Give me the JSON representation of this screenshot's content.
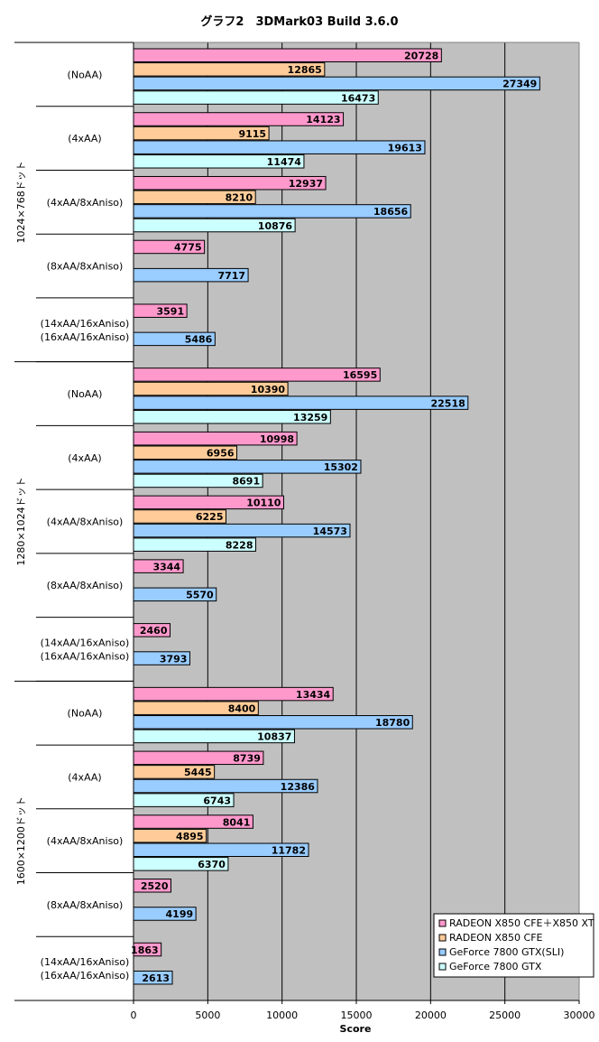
{
  "chart_data": {
    "type": "bar",
    "orientation": "horizontal",
    "title": "グラフ2　3DMark03 Build 3.6.0",
    "xlabel": "Score",
    "xlim": [
      0,
      30000
    ],
    "xticks": [
      0,
      5000,
      10000,
      15000,
      20000,
      25000,
      30000
    ],
    "grid": true,
    "legend_position": "bottom-right",
    "series": [
      {
        "name": "RADEON X850 CFE＋X850 XT",
        "color": "#ff99cc"
      },
      {
        "name": "RADEON X850 CFE",
        "color": "#ffcc99"
      },
      {
        "name": "GeForce 7800 GTX(SLI)",
        "color": "#99ccff"
      },
      {
        "name": "GeForce 7800 GTX",
        "color": "#ccffff"
      }
    ],
    "groups": [
      {
        "label": "1024×768ドット",
        "categories": [
          {
            "label": [
              "(NoAA)"
            ],
            "values": [
              20728,
              12865,
              27349,
              16473
            ]
          },
          {
            "label": [
              "(4xAA)"
            ],
            "values": [
              14123,
              9115,
              19613,
              11474
            ]
          },
          {
            "label": [
              "(4xAA/8xAniso)"
            ],
            "values": [
              12937,
              8210,
              18656,
              10876
            ]
          },
          {
            "label": [
              "(8xAA/8xAniso)"
            ],
            "values": [
              4775,
              null,
              7717,
              null
            ]
          },
          {
            "label": [
              "(14xAA/16xAniso)",
              "(16xAA/16xAniso)"
            ],
            "values": [
              3591,
              null,
              5486,
              null
            ]
          }
        ]
      },
      {
        "label": "1280×1024ドット",
        "categories": [
          {
            "label": [
              "(NoAA)"
            ],
            "values": [
              16595,
              10390,
              22518,
              13259
            ]
          },
          {
            "label": [
              "(4xAA)"
            ],
            "values": [
              10998,
              6956,
              15302,
              8691
            ]
          },
          {
            "label": [
              "(4xAA/8xAniso)"
            ],
            "values": [
              10110,
              6225,
              14573,
              8228
            ]
          },
          {
            "label": [
              "(8xAA/8xAniso)"
            ],
            "values": [
              3344,
              null,
              5570,
              null
            ]
          },
          {
            "label": [
              "(14xAA/16xAniso)",
              "(16xAA/16xAniso)"
            ],
            "values": [
              2460,
              null,
              3793,
              null
            ]
          }
        ]
      },
      {
        "label": "1600×1200ドット",
        "categories": [
          {
            "label": [
              "(NoAA)"
            ],
            "values": [
              13434,
              8400,
              18780,
              10837
            ]
          },
          {
            "label": [
              "(4xAA)"
            ],
            "values": [
              8739,
              5445,
              12386,
              6743
            ]
          },
          {
            "label": [
              "(4xAA/8xAniso)"
            ],
            "values": [
              8041,
              4895,
              11782,
              6370
            ]
          },
          {
            "label": [
              "(8xAA/8xAniso)"
            ],
            "values": [
              2520,
              null,
              4199,
              null
            ]
          },
          {
            "label": [
              "(14xAA/16xAniso)",
              "(16xAA/16xAniso)"
            ],
            "values": [
              1863,
              null,
              2613,
              null
            ]
          }
        ]
      }
    ]
  }
}
